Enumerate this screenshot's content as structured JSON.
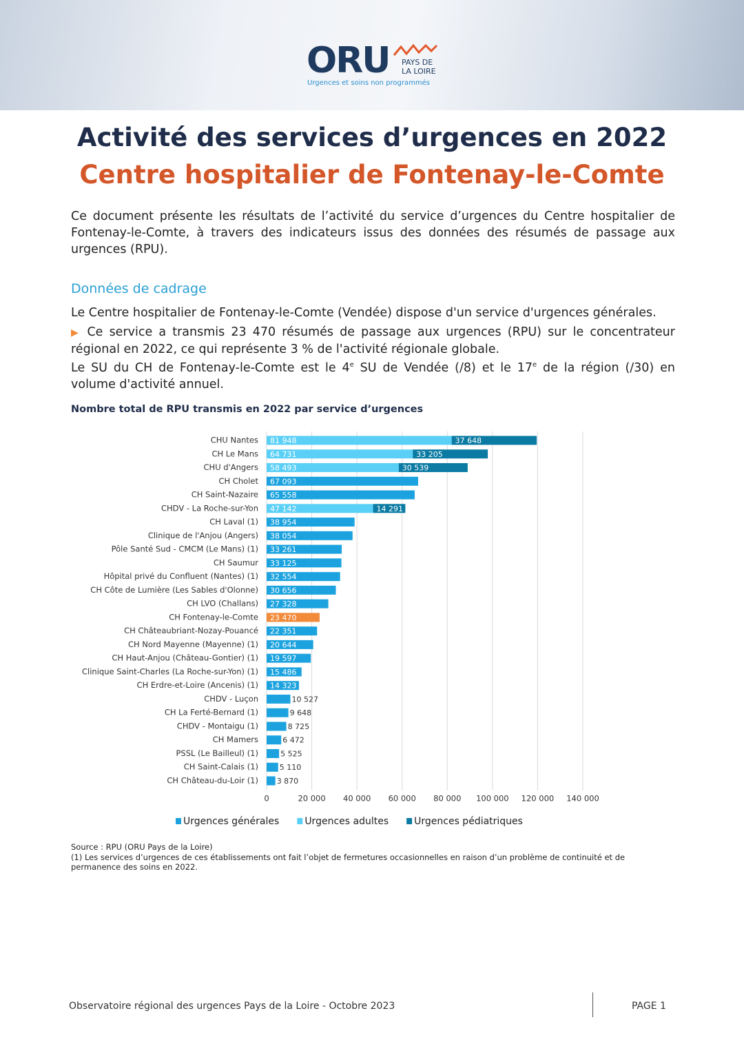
{
  "header": {
    "logo": "ORU",
    "logo_region": [
      "PAYS DE",
      "LA LOIRE"
    ],
    "tagline": "Urgences et soins non programmés"
  },
  "title": "Activité des services d’urgences en 2022",
  "subtitle": "Centre hospitalier de Fontenay-le-Comte",
  "intro": "Ce document présente les résultats de l’activité du service d’urgences du Centre hospitalier de Fontenay-le-Comte, à travers des indicateurs issus des données des résumés de passage aux urgences (RPU).",
  "section": {
    "heading": "Données de cadrage",
    "paragraphs": [
      [
        "Le Centre hospitalier de Fontenay-le-Comte (Vendée) dispose d'un service d'urgences générales."
      ],
      [
        "Ce service a transmis 23 470 résumés de passage aux urgences (RPU) sur le concentrateur régional en 2022, ce qui représente 3 % de l'activité régionale globale."
      ],
      [
        "Le SU du CH de Fontenay-le-Comte est le 4",
        "e",
        " SU de Vendée (/8) et le 17",
        "e",
        " de la région (/30) en volume d'activité annuel."
      ]
    ]
  },
  "chart_data": {
    "type": "bar",
    "orientation": "horizontal",
    "stacked": true,
    "title": "Nombre total de RPU transmis en 2022 par service d’urgences",
    "categories": [
      "CHU Nantes",
      "CH Le Mans",
      "CHU d'Angers",
      "CH Cholet",
      "CH Saint-Nazaire",
      "CHDV - La Roche-sur-Yon",
      "CH Laval (1)",
      "Clinique de l'Anjou (Angers)",
      "Pôle Santé Sud - CMCM (Le Mans) (1)",
      "CH Saumur",
      "Hôpital privé du Confluent (Nantes) (1)",
      "CH Côte de Lumière (Les Sables d'Olonne)",
      "CH LVO (Challans)",
      "CH Fontenay-le-Comte",
      "CH Châteaubriant-Nozay-Pouancé",
      "CH Nord Mayenne (Mayenne) (1)",
      "CH Haut-Anjou (Château-Gontier) (1)",
      "Clinique Saint-Charles (La Roche-sur-Yon) (1)",
      "CH Erdre-et-Loire (Ancenis) (1)",
      "CHDV - Luçon",
      "CH La Ferté-Bernard (1)",
      "CHDV - Montaigu (1)",
      "CH Mamers",
      "PSSL (Le Bailleul) (1)",
      "CH Saint-Calais (1)",
      "CH Château-du-Loir (1)"
    ],
    "series": [
      {
        "name": "Urgences générales",
        "color": "#1ca3df",
        "values": [
          null,
          null,
          null,
          67093,
          65558,
          null,
          38954,
          38054,
          33261,
          33125,
          32554,
          30656,
          27328,
          23470,
          22351,
          20644,
          19597,
          15486,
          14323,
          10527,
          9648,
          8725,
          6472,
          5525,
          5110,
          3870
        ],
        "value_labels": [
          null,
          null,
          null,
          "67 093",
          "65 558",
          null,
          "38 954",
          "38 054",
          "33 261",
          "33 125",
          "32 554",
          "30 656",
          "27 328",
          "23 470",
          "22 351",
          "20 644",
          "19 597",
          "15 486",
          "14 323",
          "10 527",
          "9 648",
          "8 725",
          "6 472",
          "5 525",
          "5 110",
          "3 870"
        ]
      },
      {
        "name": "Urgences adultes",
        "color": "#5bd0f7",
        "values": [
          81948,
          64731,
          58493,
          null,
          null,
          47142,
          null,
          null,
          null,
          null,
          null,
          null,
          null,
          null,
          null,
          null,
          null,
          null,
          null,
          null,
          null,
          null,
          null,
          null,
          null,
          null
        ],
        "value_labels": [
          "81 948",
          "64 731",
          "58 493",
          null,
          null,
          "47 142",
          null,
          null,
          null,
          null,
          null,
          null,
          null,
          null,
          null,
          null,
          null,
          null,
          null,
          null,
          null,
          null,
          null,
          null,
          null,
          null
        ]
      },
      {
        "name": "Urgences pédiatriques",
        "color": "#0b7ba3",
        "values": [
          37648,
          33205,
          30539,
          null,
          null,
          14291,
          null,
          null,
          null,
          null,
          null,
          null,
          null,
          null,
          null,
          null,
          null,
          null,
          null,
          null,
          null,
          null,
          null,
          null,
          null,
          null
        ],
        "value_labels": [
          "37 648",
          "33 205",
          "30 539",
          null,
          null,
          "14 291",
          null,
          null,
          null,
          null,
          null,
          null,
          null,
          null,
          null,
          null,
          null,
          null,
          null,
          null,
          null,
          null,
          null,
          null,
          null,
          null
        ]
      }
    ],
    "highlight": "CH Fontenay-le-Comte",
    "highlight_color": "#f28a3a",
    "xlim": [
      0,
      140000
    ],
    "xticks": [
      0,
      {
        "value": 20000,
        "label": "20 000"
      },
      {
        "value": 40000,
        "label": "40 000"
      },
      {
        "value": 60000,
        "label": "60 000"
      },
      {
        "value": 80000,
        "label": "80 000"
      },
      {
        "value": 100000,
        "label": "100 000"
      },
      {
        "value": 120000,
        "label": "120 000"
      },
      {
        "value": 140000,
        "label": "140 000"
      }
    ],
    "grid": true,
    "legend": "bottom"
  },
  "source": "Source : RPU (ORU Pays de la Loire)",
  "note": "(1) Les services d’urgences de ces établissements ont fait l’objet de fermetures occasionnelles en raison d’un problème de continuité et de permanence des soins en 2022.",
  "footer": {
    "left": "Observatoire régional des urgences Pays de la Loire - Octobre 2023",
    "right": "PAGE 1"
  }
}
